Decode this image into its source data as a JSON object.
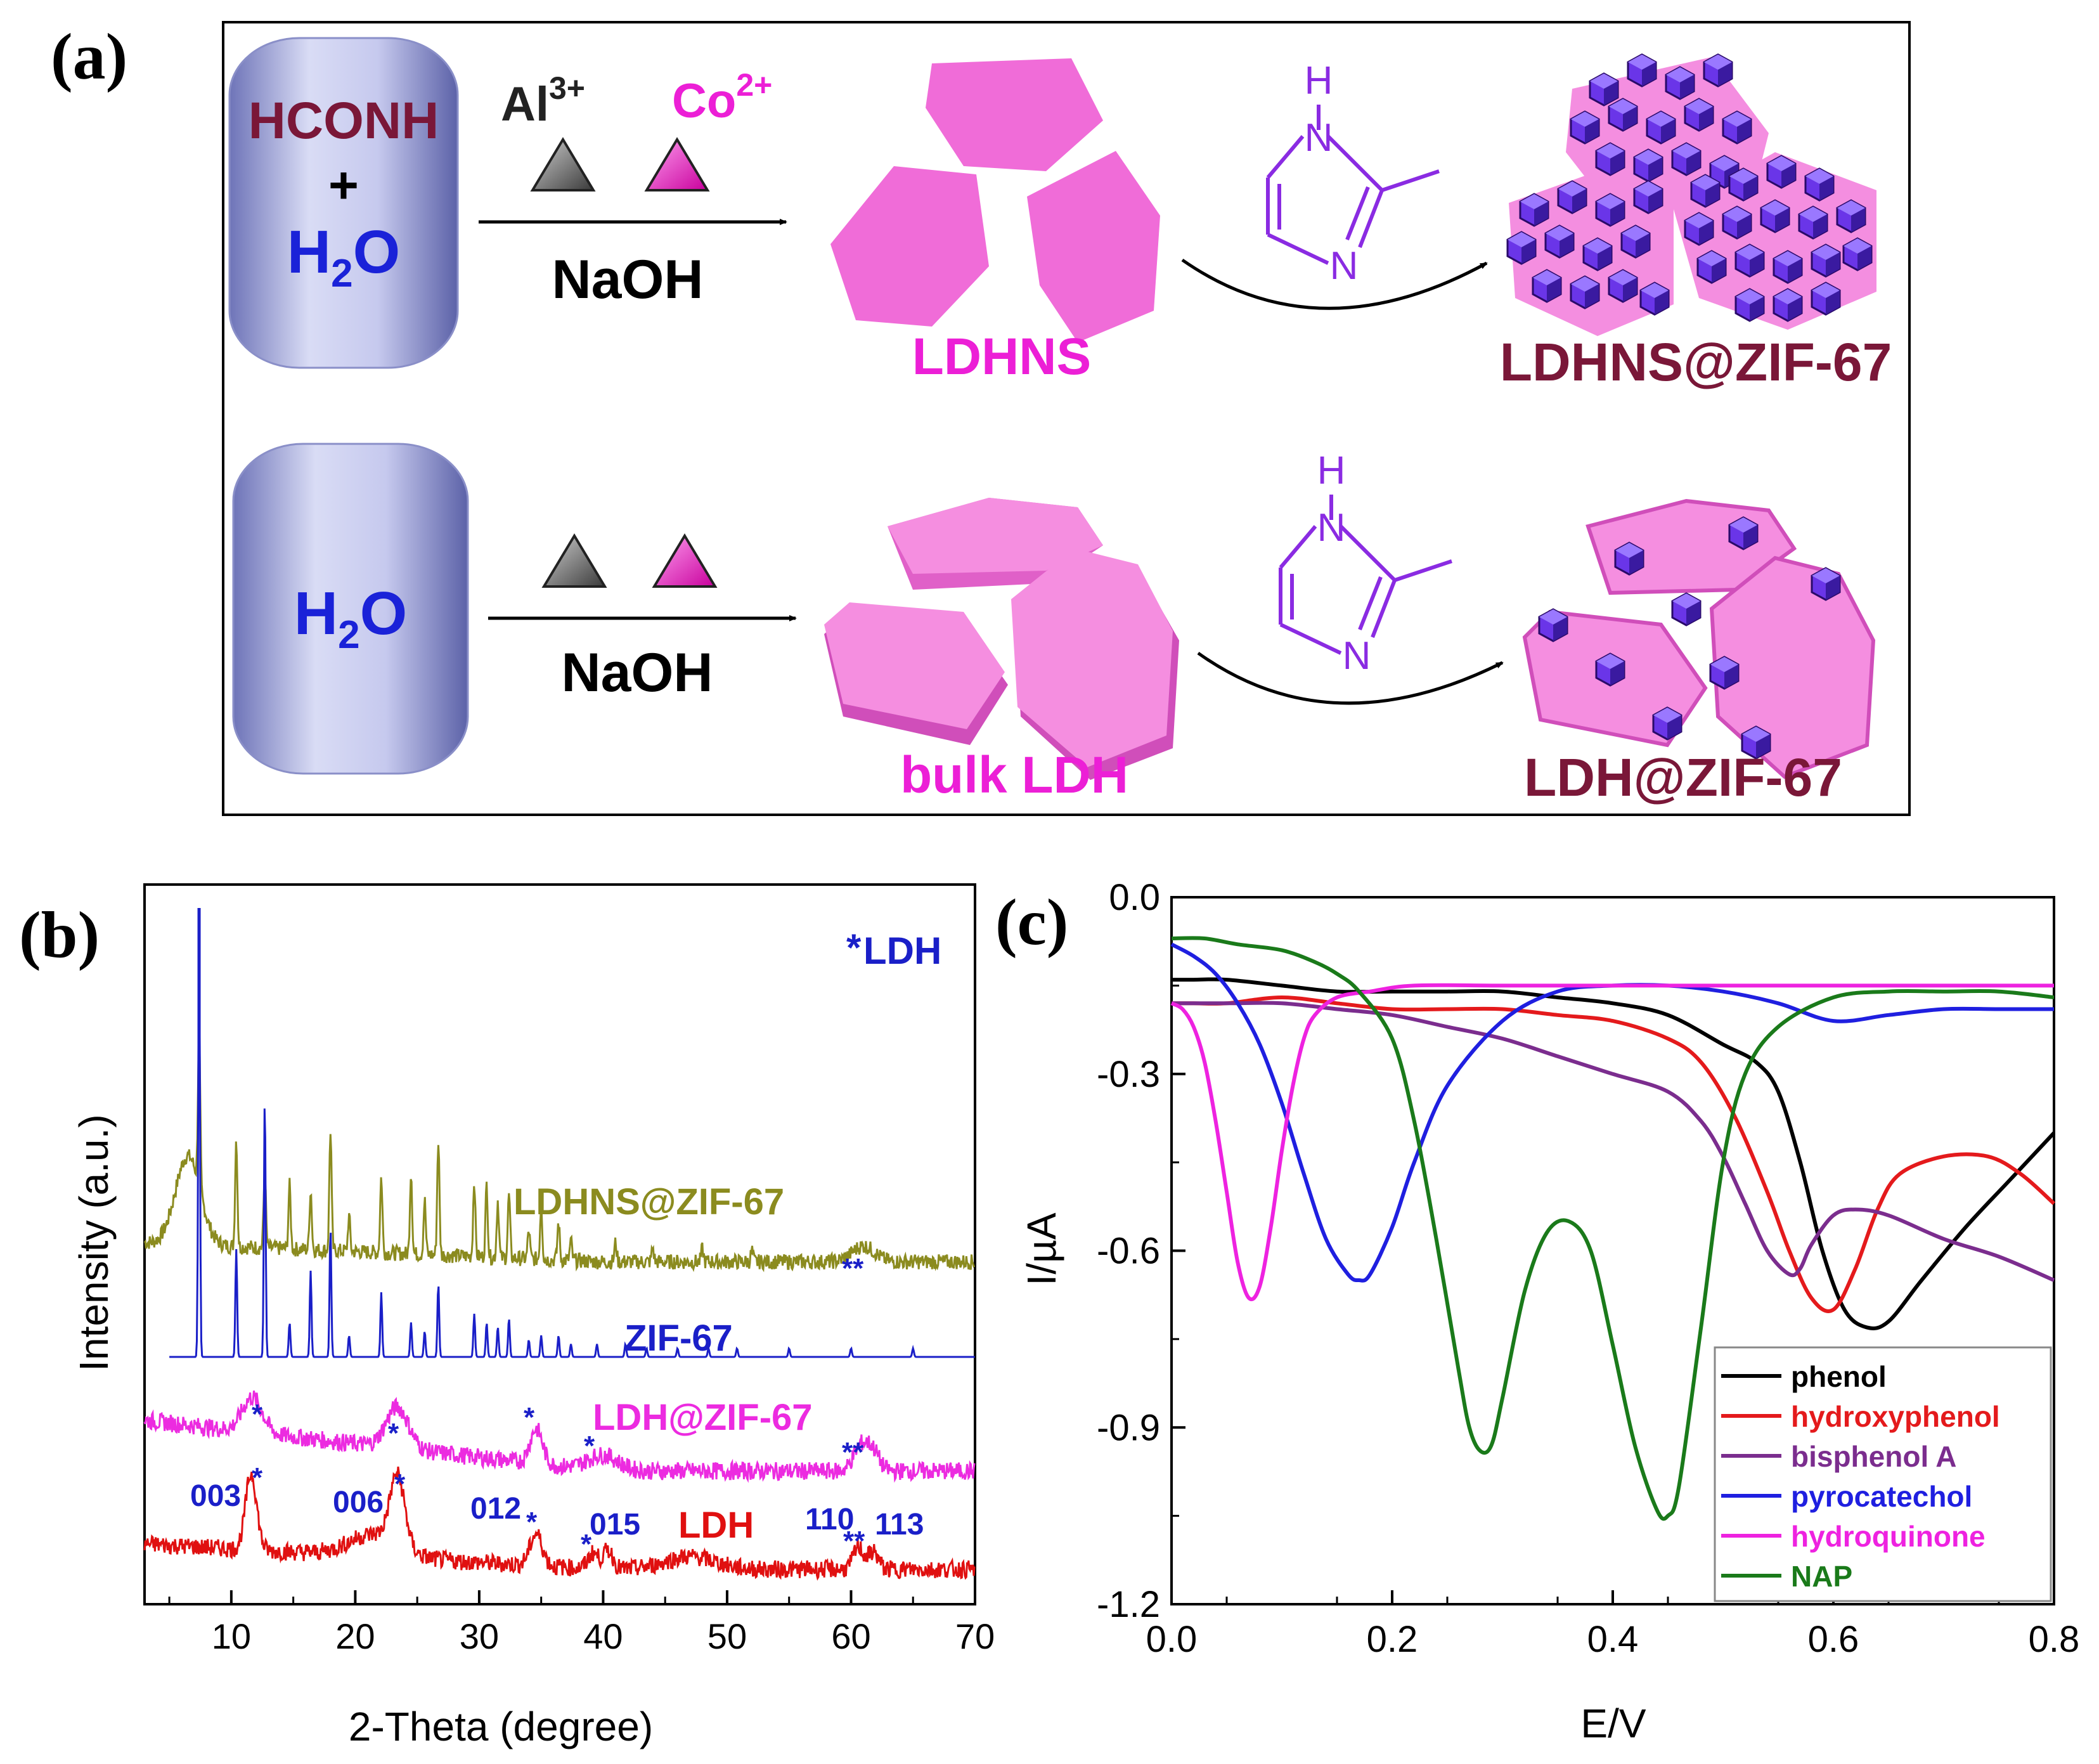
{
  "panel_labels": {
    "a": "(a)",
    "b": "(b)",
    "c": "(c)"
  },
  "scheme": {
    "top": {
      "tank_line1": "HCONH",
      "tank_plus": "+",
      "tank_h2o_H": "H",
      "tank_h2o_sub": "2",
      "tank_h2o_O": "O",
      "ion_al": "Al",
      "ion_al_charge": "3+",
      "ion_co": "Co",
      "ion_co_charge": "2+",
      "reagent": "NaOH",
      "intermediate": "LDHNS",
      "imidazole_H": "H",
      "imidazole_N1": "N",
      "imidazole_N2": "N",
      "product": "LDHNS@ZIF-67"
    },
    "bottom": {
      "tank_h2o_H": "H",
      "tank_h2o_sub": "2",
      "tank_h2o_O": "O",
      "reagent": "NaOH",
      "intermediate": "bulk LDH",
      "imidazole_H": "H",
      "imidazole_N1": "N",
      "imidazole_N2": "N",
      "product": "LDH@ZIF-67"
    },
    "colors": {
      "maroon": "#7a1738",
      "blue": "#1a22d8",
      "magenta": "#ec1fd6",
      "pink": "#f06cd8",
      "purple": "#8a2be2",
      "gray": "#555555"
    }
  },
  "xrd": {
    "xlabel": "2-Theta (degree)",
    "ylabel": "Intensity (a.u.)",
    "xticks": [
      "10",
      "20",
      "30",
      "40",
      "50",
      "60",
      "70"
    ],
    "legend_star": "*",
    "legend_text": "LDH",
    "traces": [
      {
        "name": "LDHNS@ZIF-67",
        "color": "#8b8b1f"
      },
      {
        "name": "ZIF-67",
        "color": "#1a1fc8"
      },
      {
        "name": "LDH@ZIF-67",
        "color": "#ec2be0"
      },
      {
        "name": "LDH",
        "color": "#e01010"
      }
    ],
    "hkl": [
      "003",
      "006",
      "012",
      "015",
      "110",
      "113"
    ],
    "star": "*",
    "star_pair": "**"
  },
  "chart_data": {
    "type": "line",
    "title": "",
    "xlabel": "E/V",
    "ylabel": "I/µA",
    "xlim": [
      0.0,
      0.8
    ],
    "ylim": [
      -1.2,
      0.0
    ],
    "xticks": [
      "0.0",
      "0.2",
      "0.4",
      "0.6",
      "0.8"
    ],
    "yticks": [
      "0.0",
      "-0.3",
      "-0.6",
      "-0.9",
      "-1.2"
    ],
    "legend_position": "bottom-right",
    "series": [
      {
        "name": "phenol",
        "color": "#000000",
        "x": [
          0.0,
          0.02,
          0.05,
          0.1,
          0.15,
          0.2,
          0.25,
          0.3,
          0.35,
          0.4,
          0.45,
          0.5,
          0.53,
          0.55,
          0.57,
          0.59,
          0.61,
          0.63,
          0.65,
          0.68,
          0.72,
          0.76,
          0.8
        ],
        "y": [
          -0.14,
          -0.14,
          -0.14,
          -0.15,
          -0.16,
          -0.16,
          -0.16,
          -0.16,
          -0.17,
          -0.18,
          -0.2,
          -0.25,
          -0.28,
          -0.33,
          -0.45,
          -0.6,
          -0.7,
          -0.73,
          -0.72,
          -0.65,
          -0.56,
          -0.48,
          -0.4
        ]
      },
      {
        "name": "hydroxyphenol",
        "color": "#e41a1c",
        "x": [
          0.0,
          0.02,
          0.05,
          0.1,
          0.15,
          0.2,
          0.25,
          0.3,
          0.35,
          0.4,
          0.45,
          0.48,
          0.51,
          0.54,
          0.56,
          0.58,
          0.6,
          0.62,
          0.64,
          0.66,
          0.7,
          0.74,
          0.77,
          0.8
        ],
        "y": [
          -0.18,
          -0.18,
          -0.18,
          -0.17,
          -0.18,
          -0.19,
          -0.19,
          -0.19,
          -0.2,
          -0.21,
          -0.24,
          -0.28,
          -0.37,
          -0.5,
          -0.6,
          -0.68,
          -0.7,
          -0.63,
          -0.53,
          -0.47,
          -0.44,
          -0.44,
          -0.47,
          -0.52
        ]
      },
      {
        "name": "bisphenol A",
        "color": "#7b2d8e",
        "x": [
          0.0,
          0.05,
          0.1,
          0.15,
          0.2,
          0.25,
          0.3,
          0.35,
          0.4,
          0.45,
          0.48,
          0.5,
          0.52,
          0.54,
          0.56,
          0.57,
          0.58,
          0.6,
          0.62,
          0.65,
          0.7,
          0.75,
          0.8
        ],
        "y": [
          -0.18,
          -0.18,
          -0.18,
          -0.19,
          -0.2,
          -0.22,
          -0.24,
          -0.27,
          -0.3,
          -0.33,
          -0.38,
          -0.44,
          -0.52,
          -0.6,
          -0.64,
          -0.63,
          -0.59,
          -0.54,
          -0.53,
          -0.54,
          -0.58,
          -0.61,
          -0.65
        ]
      },
      {
        "name": "pyrocatechol",
        "color": "#1f1fe0",
        "x": [
          0.0,
          0.02,
          0.04,
          0.06,
          0.08,
          0.1,
          0.12,
          0.14,
          0.16,
          0.17,
          0.18,
          0.2,
          0.22,
          0.25,
          0.3,
          0.35,
          0.4,
          0.45,
          0.5,
          0.55,
          0.6,
          0.65,
          0.7,
          0.75,
          0.8
        ],
        "y": [
          -0.08,
          -0.1,
          -0.13,
          -0.18,
          -0.25,
          -0.35,
          -0.47,
          -0.58,
          -0.64,
          -0.65,
          -0.64,
          -0.56,
          -0.45,
          -0.32,
          -0.21,
          -0.16,
          -0.15,
          -0.15,
          -0.16,
          -0.18,
          -0.21,
          -0.2,
          -0.19,
          -0.19,
          -0.19
        ]
      },
      {
        "name": "hydroquinone",
        "color": "#ee22e0",
        "x": [
          0.0,
          0.01,
          0.02,
          0.03,
          0.04,
          0.05,
          0.06,
          0.07,
          0.08,
          0.09,
          0.1,
          0.11,
          0.12,
          0.13,
          0.15,
          0.18,
          0.22,
          0.3,
          0.4,
          0.5,
          0.6,
          0.7,
          0.8
        ],
        "y": [
          -0.18,
          -0.19,
          -0.22,
          -0.28,
          -0.38,
          -0.5,
          -0.62,
          -0.68,
          -0.66,
          -0.56,
          -0.43,
          -0.32,
          -0.24,
          -0.2,
          -0.17,
          -0.16,
          -0.15,
          -0.15,
          -0.15,
          -0.15,
          -0.15,
          -0.15,
          -0.15
        ]
      },
      {
        "name": "NAP",
        "color": "#1a7a1a",
        "x": [
          0.0,
          0.03,
          0.06,
          0.1,
          0.13,
          0.15,
          0.17,
          0.2,
          0.22,
          0.24,
          0.26,
          0.27,
          0.28,
          0.29,
          0.3,
          0.32,
          0.34,
          0.36,
          0.38,
          0.4,
          0.42,
          0.44,
          0.45,
          0.46,
          0.48,
          0.5,
          0.52,
          0.55,
          0.6,
          0.65,
          0.7,
          0.75,
          0.8
        ],
        "y": [
          -0.07,
          -0.07,
          -0.08,
          -0.09,
          -0.11,
          -0.13,
          -0.16,
          -0.24,
          -0.38,
          -0.58,
          -0.8,
          -0.9,
          -0.94,
          -0.93,
          -0.85,
          -0.67,
          -0.57,
          -0.55,
          -0.6,
          -0.76,
          -0.93,
          -1.04,
          -1.05,
          -1.0,
          -0.73,
          -0.45,
          -0.3,
          -0.22,
          -0.17,
          -0.16,
          -0.16,
          -0.16,
          -0.17
        ]
      }
    ]
  }
}
